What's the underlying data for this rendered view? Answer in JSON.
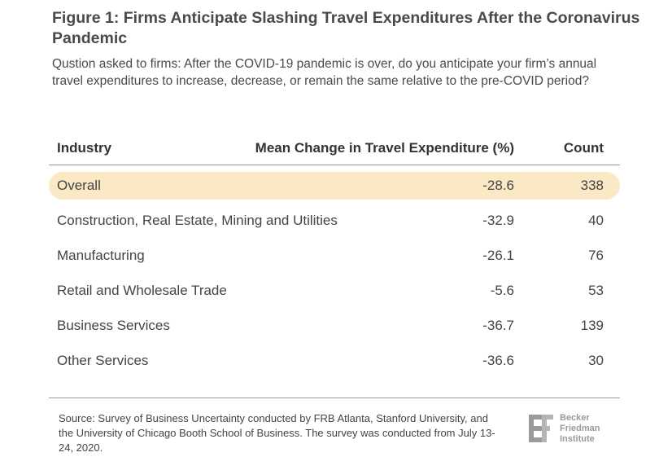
{
  "figure": {
    "title": "Figure 1: Firms Anticipate Slashing Travel Expenditures After the Coronavirus Pandemic",
    "subtitle": "Qustion asked to firms: After the COVID-19 pandemic is over, do you anticipate your firm’s annual travel expenditures to increase, decrease, or remain the same relative to the pre-COVID period?",
    "source": "Source: Survey of Business Uncertainty conducted by FRB Atlanta, Stanford University, and the University of Chicago Booth School of Business. The survey was conducted from July 13-24, 2020."
  },
  "logo": {
    "line1": "Becker",
    "line2": "Friedman",
    "line3": "Institute"
  },
  "colors": {
    "highlight": "#fbe8c4",
    "logo_gray": "#9a9a9a"
  },
  "chart_data": {
    "type": "table",
    "columns": [
      "Industry",
      "Mean Change in Travel Expenditure (%)",
      "Count"
    ],
    "rows": [
      {
        "industry": "Overall",
        "mean": "-28.6",
        "count": "338",
        "highlighted": true
      },
      {
        "industry": "Construction, Real Estate, Mining and Utilities",
        "mean": "-32.9",
        "count": "40",
        "highlighted": false
      },
      {
        "industry": "Manufacturing",
        "mean": "-26.1",
        "count": "76",
        "highlighted": false
      },
      {
        "industry": "Retail and Wholesale Trade",
        "mean": "-5.6",
        "count": "53",
        "highlighted": false
      },
      {
        "industry": "Business Services",
        "mean": "-36.7",
        "count": "139",
        "highlighted": false
      },
      {
        "industry": "Other Services",
        "mean": "-36.6",
        "count": "30",
        "highlighted": false
      }
    ]
  }
}
